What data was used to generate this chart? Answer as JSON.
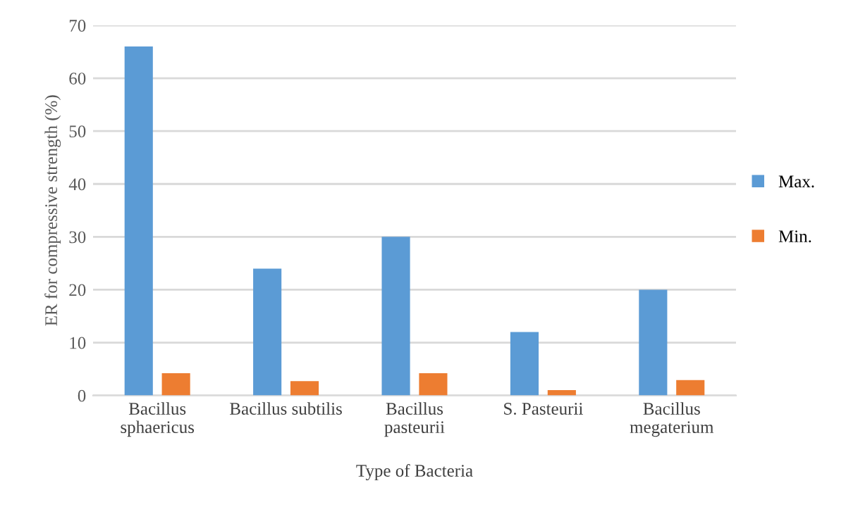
{
  "chart_data": {
    "type": "bar",
    "xlabel": "Type of Bacteria",
    "ylabel": "ER for compressive strength (%)",
    "categories": [
      "Bacillus\nsphaericus",
      "Bacillus subtilis",
      "Bacillus\npasteurii",
      "S. Pasteurii",
      "Bacillus\nmegaterium"
    ],
    "series": [
      {
        "name": "Max.",
        "color": "#5b9bd5",
        "values": [
          66,
          24,
          30,
          12,
          20
        ]
      },
      {
        "name": "Min.",
        "color": "#ed7d31",
        "values": [
          4.2,
          2.7,
          4.2,
          1.0,
          2.9
        ]
      }
    ],
    "ylim": [
      0,
      70
    ],
    "yticks": [
      0,
      10,
      20,
      30,
      40,
      50,
      60,
      70
    ],
    "grid": "y",
    "legend": "right"
  }
}
